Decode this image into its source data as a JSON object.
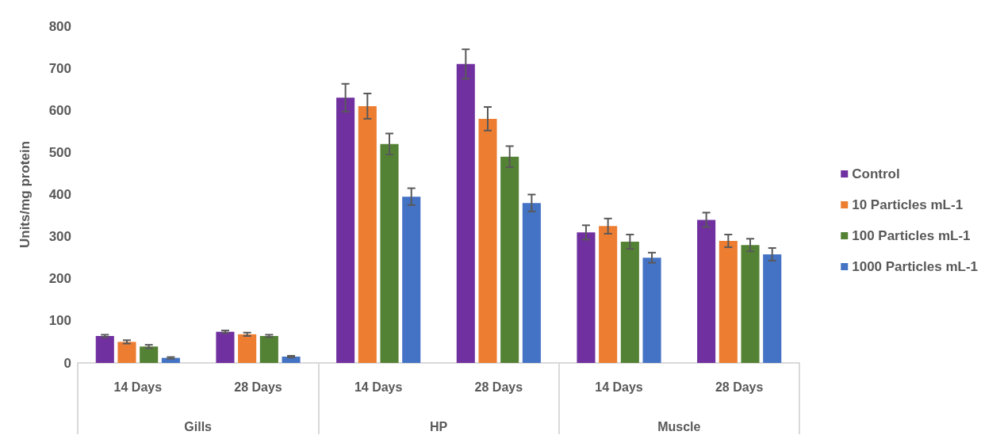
{
  "chart_data": {
    "type": "bar",
    "ylabel": "Units/mg protein",
    "categories": [
      "14 Days",
      "28 Days",
      "14 Days",
      "28 Days",
      "14 Days",
      "28 Days"
    ],
    "annotations": [
      "Gills",
      "HP",
      "Muscle"
    ],
    "series": [
      {
        "name": "Control",
        "color": "#7030a0",
        "values": [
          64,
          74,
          630,
          710,
          310,
          340
        ],
        "errors": [
          3,
          3,
          33,
          35,
          17,
          17
        ]
      },
      {
        "name": "10 Particles mL-1",
        "color": "#ed7d31",
        "values": [
          50,
          68,
          610,
          580,
          325,
          290
        ],
        "errors": [
          4,
          4,
          30,
          28,
          18,
          15
        ]
      },
      {
        "name": "100 Particles mL-1",
        "color": "#548235",
        "values": [
          39,
          64,
          520,
          490,
          288,
          280
        ],
        "errors": [
          4,
          3,
          25,
          25,
          17,
          15
        ]
      },
      {
        "name": "1000 Particles mL-1",
        "color": "#4472c4",
        "values": [
          12,
          15,
          395,
          380,
          250,
          258
        ],
        "errors": [
          2,
          2,
          20,
          20,
          12,
          15
        ]
      }
    ],
    "ylim": [
      0,
      800
    ],
    "yticks": [
      0,
      100,
      200,
      300,
      400,
      500,
      600,
      700,
      800
    ],
    "grid": false,
    "legend": "right"
  }
}
